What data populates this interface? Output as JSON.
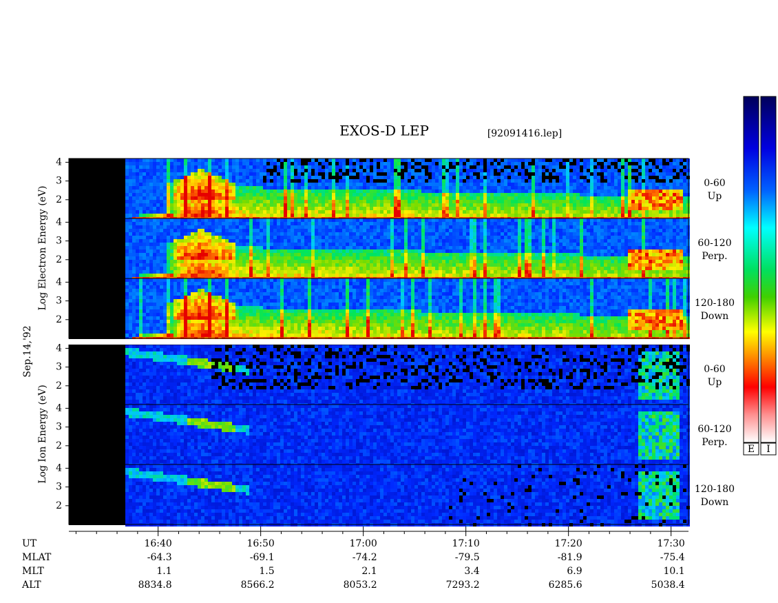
{
  "header": {
    "title": "EXOS-D LEP",
    "file": "[92091416.lep]"
  },
  "axis_labels": {
    "electron": "Log Electron Energy (eV)",
    "date": "Sep.14,'92",
    "ion": "Log Ion Energy (eV)"
  },
  "panels": [
    {
      "species": "electron",
      "pitch": "0-60",
      "direction": "Up"
    },
    {
      "species": "electron",
      "pitch": "60-120",
      "direction": "Perp."
    },
    {
      "species": "electron",
      "pitch": "120-180",
      "direction": "Down"
    },
    {
      "species": "ion",
      "pitch": "0-60",
      "direction": "Up"
    },
    {
      "species": "ion",
      "pitch": "60-120",
      "direction": "Perp."
    },
    {
      "species": "ion",
      "pitch": "120-180",
      "direction": "Down"
    }
  ],
  "energy_axis": {
    "ylim": [
      1,
      4.2
    ],
    "yticks": [
      2,
      3,
      4
    ]
  },
  "time_axis": {
    "label": "UT",
    "xlim": [
      991.3,
      1051.7
    ],
    "xticks": [
      {
        "value": 1000,
        "label": "16:40"
      },
      {
        "value": 1010,
        "label": "16:50"
      },
      {
        "value": 1020,
        "label": "17:00"
      },
      {
        "value": 1030,
        "label": "17:10"
      },
      {
        "value": 1040,
        "label": "17:20"
      },
      {
        "value": 1050,
        "label": "17:30"
      }
    ],
    "minor_xticks": [
      992,
      994,
      996,
      998,
      1002,
      1004,
      1006,
      1008,
      1012,
      1014,
      1016,
      1018,
      1022,
      1024,
      1026,
      1028,
      1032,
      1034,
      1036,
      1038,
      1042,
      1044,
      1046,
      1048
    ]
  },
  "ephemeris": [
    {
      "label": "MLAT",
      "values": [
        "-64.3",
        "-69.1",
        "-74.2",
        "-79.5",
        "-81.9",
        "-75.4"
      ]
    },
    {
      "label": "MLT",
      "values": [
        "1.1",
        "1.5",
        "2.1",
        "3.4",
        "6.9",
        "10.1"
      ]
    },
    {
      "label": "ALT",
      "values": [
        "8834.8",
        "8566.2",
        "8053.2",
        "7293.2",
        "6285.6",
        "5038.4"
      ]
    }
  ],
  "colorbars": [
    "E",
    "I"
  ]
}
